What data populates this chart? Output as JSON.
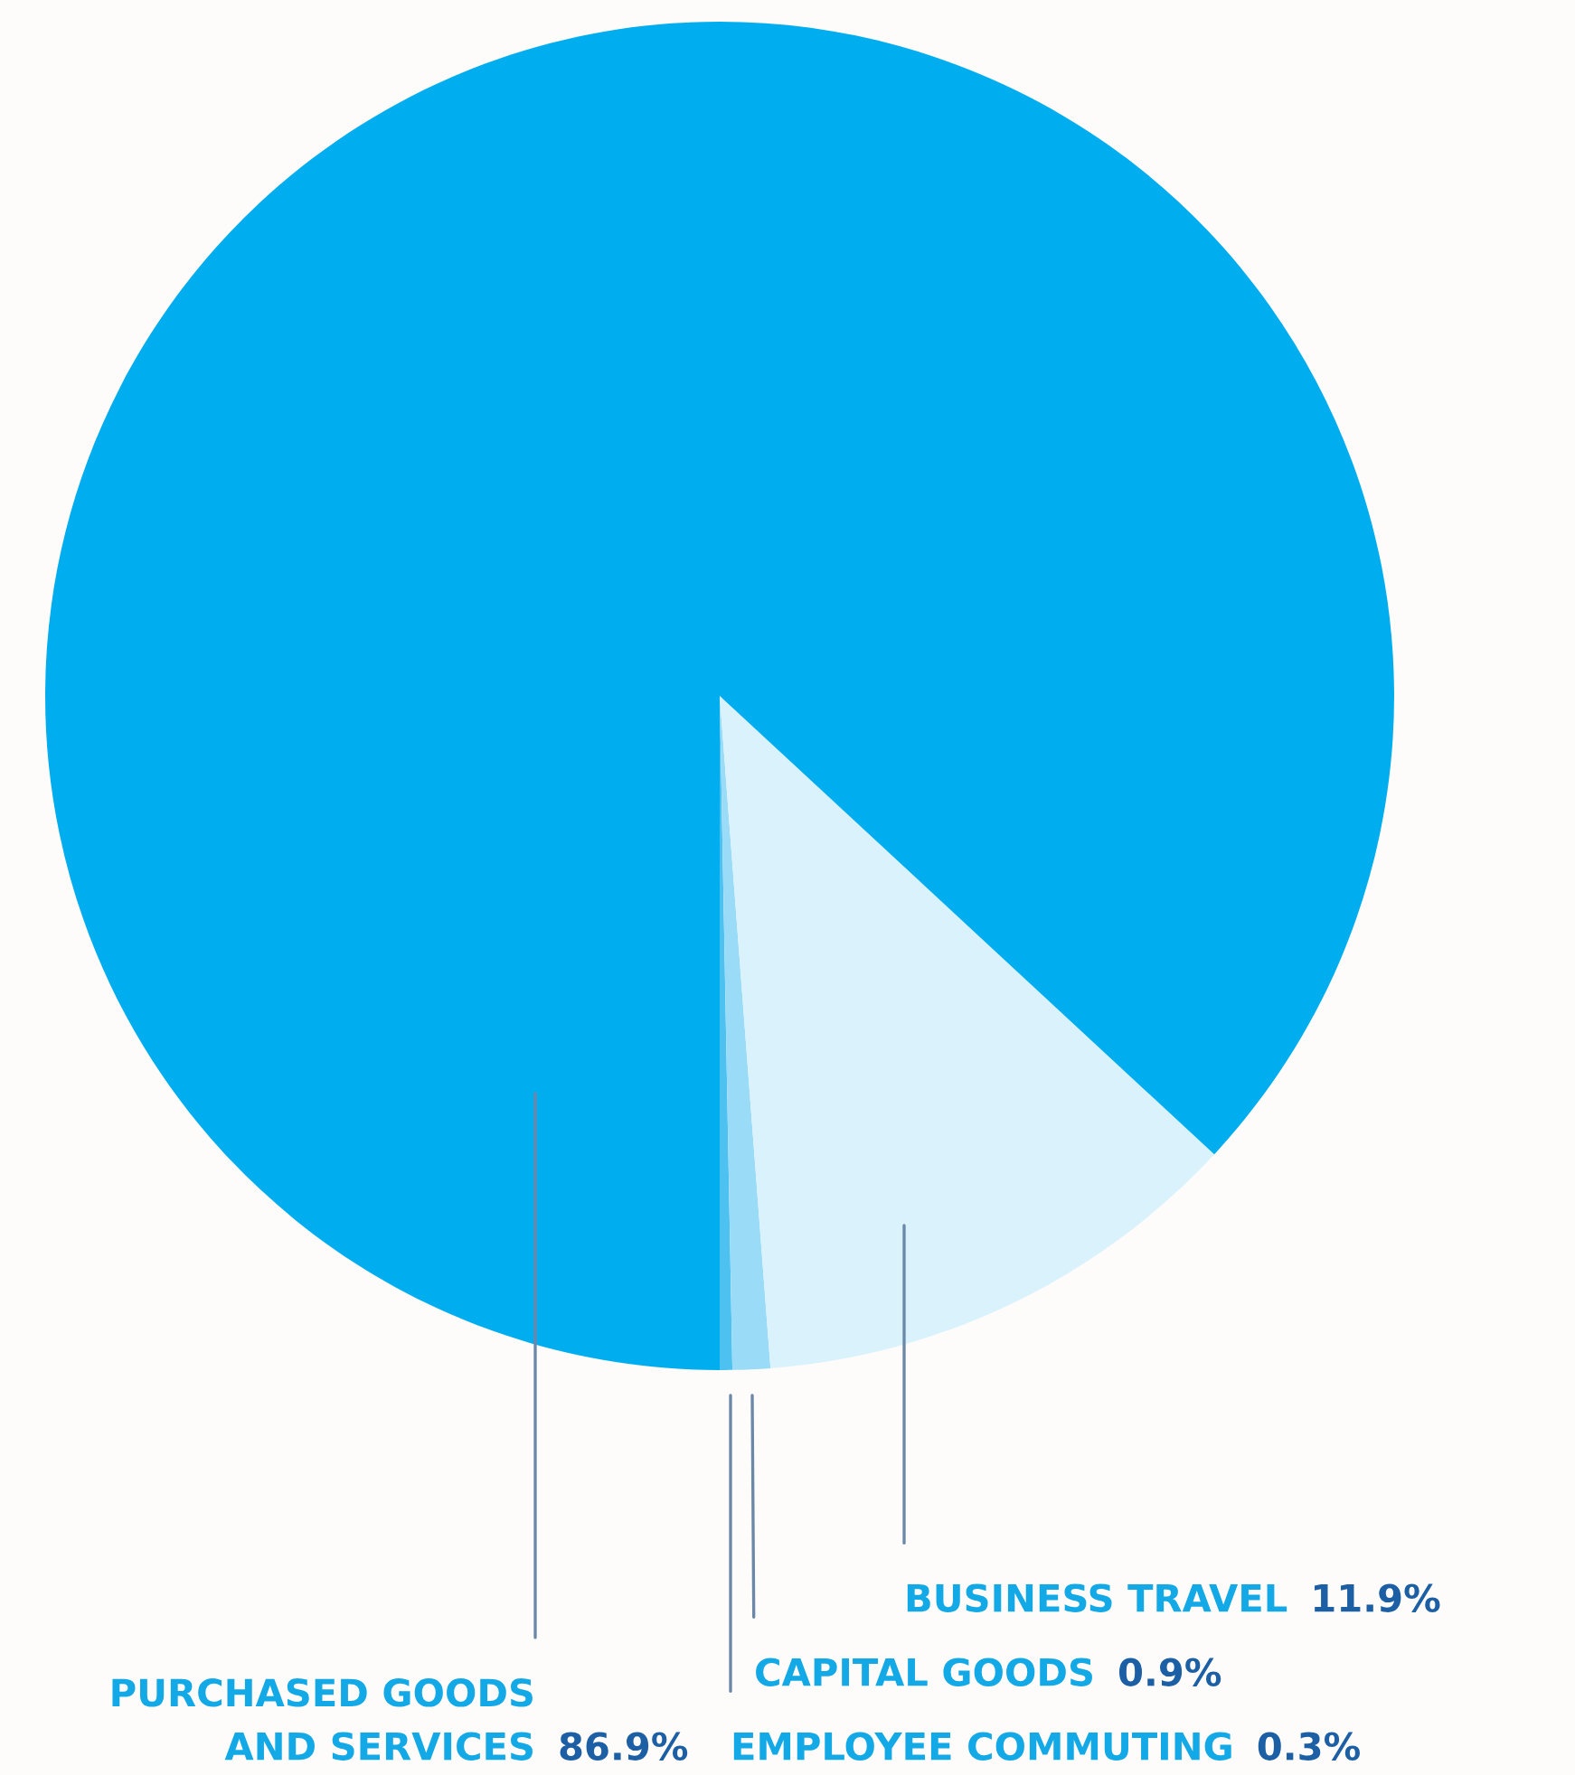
{
  "chart_data": {
    "type": "pie",
    "categories": [
      "EMPLOYEE COMMUTING",
      "CAPITAL GOODS",
      "BUSINESS TRAVEL",
      "PURCHASED GOODS\nAND SERVICES"
    ],
    "values": [
      0.3,
      0.9,
      11.9,
      86.9
    ],
    "colors": [
      "#4dc2f1",
      "#9adcf7",
      "#daf2fc",
      "#00aeef"
    ],
    "value_labels": [
      "0.3%",
      "0.9%",
      "11.9%",
      "86.9%"
    ],
    "legend": false
  }
}
